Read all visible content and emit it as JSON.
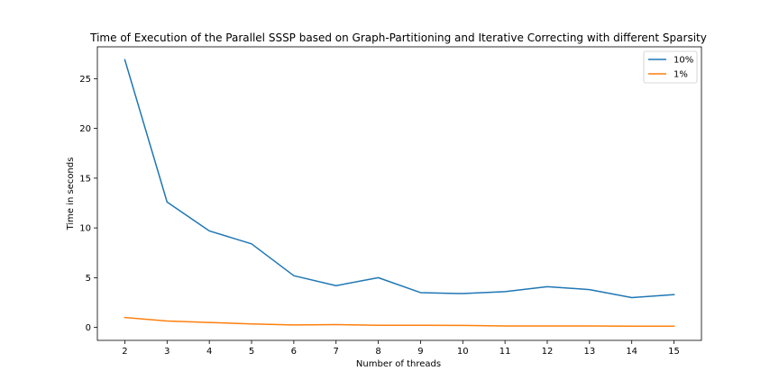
{
  "chart_data": {
    "type": "line",
    "title": "Time of Execution of the Parallel SSSP based on Graph-Partitioning and Iterative Correcting with different Sparsity",
    "xlabel": "Number of threads",
    "ylabel": "Time in seconds",
    "x": [
      2,
      3,
      4,
      5,
      6,
      7,
      8,
      9,
      10,
      11,
      12,
      13,
      14,
      15
    ],
    "xticks": [
      2,
      3,
      4,
      5,
      6,
      7,
      8,
      9,
      10,
      11,
      12,
      13,
      14,
      15
    ],
    "yticks": [
      0,
      5,
      10,
      15,
      20,
      25
    ],
    "xlim": [
      1.35,
      15.65
    ],
    "ylim": [
      -1.3,
      28.2
    ],
    "grid": false,
    "legend_position": "top-right",
    "series": [
      {
        "name": "10%",
        "color": "#1f77b4",
        "values": [
          26.9,
          12.6,
          9.7,
          8.4,
          5.2,
          4.2,
          5.0,
          3.5,
          3.4,
          3.6,
          4.1,
          3.8,
          3.0,
          3.3
        ]
      },
      {
        "name": "1%",
        "color": "#ff7f0e",
        "values": [
          1.0,
          0.65,
          0.5,
          0.35,
          0.25,
          0.28,
          0.22,
          0.22,
          0.2,
          0.15,
          0.15,
          0.15,
          0.12,
          0.12
        ]
      }
    ]
  }
}
